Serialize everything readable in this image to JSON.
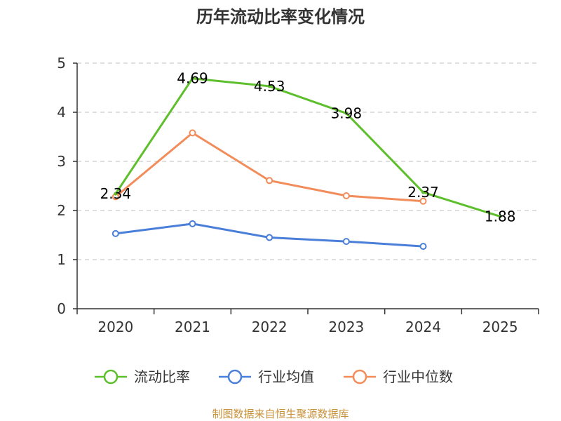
{
  "chart_data": {
    "type": "line",
    "title": "历年流动比率变化情况",
    "categories": [
      "2020",
      "2021",
      "2022",
      "2023",
      "2024",
      "2025"
    ],
    "ylim": [
      0,
      5
    ],
    "yticks": [
      "0",
      "1",
      "2",
      "3",
      "4",
      "5"
    ],
    "grid": true,
    "legend_position": "bottom",
    "series": [
      {
        "name": "流动比率",
        "color": "#5dbf2b",
        "values": [
          2.34,
          4.69,
          4.53,
          3.98,
          2.37,
          1.88
        ],
        "labels": [
          "2.34",
          "4.69",
          "4.53",
          "3.98",
          "2.37",
          "1.88"
        ]
      },
      {
        "name": "行业均值",
        "color": "#4a7fd9",
        "values": [
          1.53,
          1.73,
          1.45,
          1.37,
          1.27,
          null
        ]
      },
      {
        "name": "行业中位数",
        "color": "#f28c5a",
        "values": [
          2.28,
          3.58,
          2.61,
          2.3,
          2.19,
          null
        ]
      }
    ],
    "source": "制图数据来自恒生聚源数据库"
  }
}
